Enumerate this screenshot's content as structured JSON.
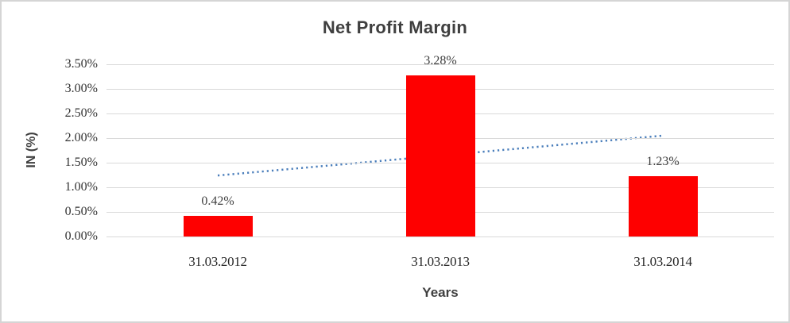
{
  "chart_data": {
    "type": "bar",
    "title": "Net Profit Margin",
    "categories": [
      "31.03.2012",
      "31.03.2013",
      "31.03.2014"
    ],
    "series": [
      {
        "name": "Net Profit Margin",
        "values": [
          0.42,
          3.28,
          1.23
        ]
      }
    ],
    "data_labels": [
      "0.42%",
      "3.28%",
      "1.23%"
    ],
    "xlabel": "Years",
    "ylabel": "IN (%)",
    "ylim": [
      0,
      3.5
    ],
    "y_tick_values": [
      0,
      0.5,
      1,
      1.5,
      2,
      2.5,
      3,
      3.5
    ],
    "y_tick_labels": [
      "0.00%",
      "0.50%",
      "1.00%",
      "1.50%",
      "2.00%",
      "2.50%",
      "3.00%",
      "3.50%"
    ],
    "grid": true,
    "legend_position": "none",
    "bar_color": "#fe0000",
    "gridline_color": "#d9d9d9",
    "title_color": "#3f3f3f",
    "trendline": {
      "type": "linear",
      "style": "dotted",
      "color": "#4a7ebb",
      "start_value": 1.24,
      "end_value": 2.05
    }
  }
}
